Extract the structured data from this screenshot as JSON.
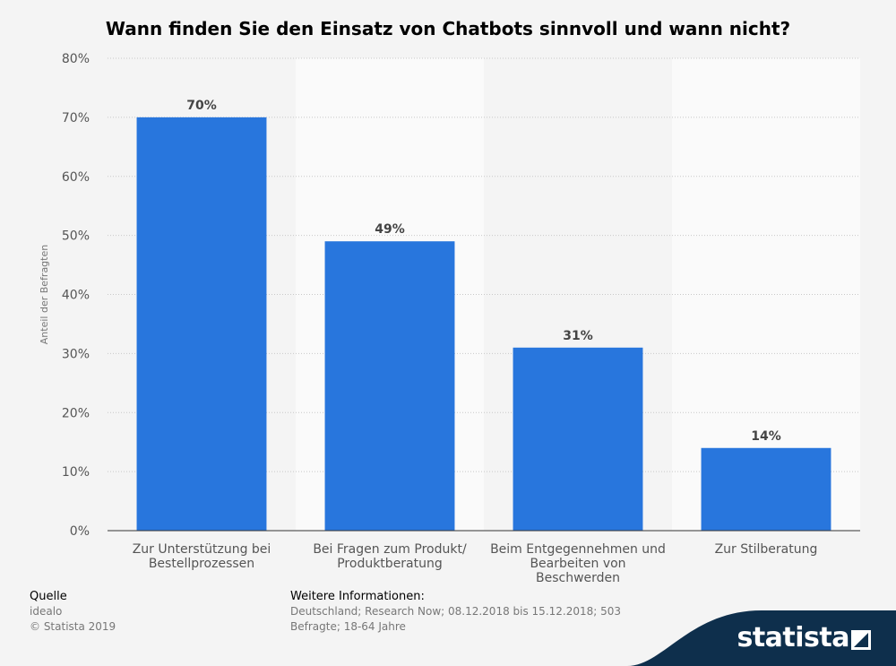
{
  "chart_data": {
    "type": "bar",
    "title": "Wann finden Sie den Einsatz von Chatbots sinnvoll und wann nicht?",
    "ylabel": "Anteil der Befragten",
    "xlabel": "",
    "categories": [
      [
        "Zur Unterstützung bei",
        "Bestellprozessen"
      ],
      [
        "Bei Fragen zum Produkt/",
        "Produktberatung"
      ],
      [
        "Beim Entgegennehmen und",
        "Bearbeiten von",
        "Beschwerden"
      ],
      [
        "Zur Stilberatung"
      ]
    ],
    "values": [
      70,
      49,
      31,
      14
    ],
    "value_labels": [
      "70%",
      "49%",
      "31%",
      "14%"
    ],
    "ylim": [
      0,
      80
    ],
    "yticks": [
      0,
      10,
      20,
      30,
      40,
      50,
      60,
      70,
      80
    ],
    "ytick_labels": [
      "0%",
      "10%",
      "20%",
      "30%",
      "40%",
      "50%",
      "60%",
      "70%",
      "80%"
    ],
    "grid": true,
    "bar_color": "#2876dd"
  },
  "footer": {
    "source_heading": "Quelle",
    "source_name": "idealo",
    "copyright": "© Statista 2019",
    "info_heading": "Weitere Informationen:",
    "info_line1": "Deutschland; Research Now; 08.12.2018 bis 15.12.2018; 503",
    "info_line2": "Befragte; 18-64 Jahre"
  },
  "brand": {
    "name": "statista",
    "color": "#0e2f4c"
  }
}
